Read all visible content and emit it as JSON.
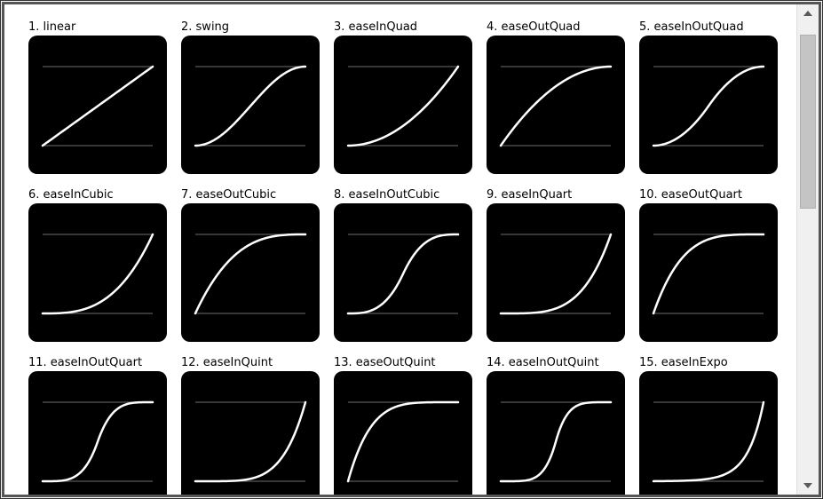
{
  "colors": {
    "tile_background": "#000000",
    "curve": "#ffffff",
    "guide_line": "#6e6e6e",
    "scrollbar_track": "#f0f0f0",
    "scrollbar_thumb": "#c4c4c4"
  },
  "icons": {
    "scroll_up": "triangle-up-icon",
    "scroll_down": "triangle-down-icon"
  },
  "easings": [
    {
      "label": "1. linear",
      "fn": "linear"
    },
    {
      "label": "2. swing",
      "fn": "swing"
    },
    {
      "label": "3. easeInQuad",
      "fn": "easeInQuad"
    },
    {
      "label": "4. easeOutQuad",
      "fn": "easeOutQuad"
    },
    {
      "label": "5. easeInOutQuad",
      "fn": "easeInOutQuad"
    },
    {
      "label": "6. easeInCubic",
      "fn": "easeInCubic"
    },
    {
      "label": "7. easeOutCubic",
      "fn": "easeOutCubic"
    },
    {
      "label": "8. easeInOutCubic",
      "fn": "easeInOutCubic"
    },
    {
      "label": "9. easeInQuart",
      "fn": "easeInQuart"
    },
    {
      "label": "10. easeOutQuart",
      "fn": "easeOutQuart"
    },
    {
      "label": "11. easeInOutQuart",
      "fn": "easeInOutQuart"
    },
    {
      "label": "12. easeInQuint",
      "fn": "easeInQuint"
    },
    {
      "label": "13. easeOutQuint",
      "fn": "easeOutQuint"
    },
    {
      "label": "14. easeInOutQuint",
      "fn": "easeInOutQuint"
    },
    {
      "label": "15. easeInExpo",
      "fn": "easeInExpo"
    }
  ]
}
